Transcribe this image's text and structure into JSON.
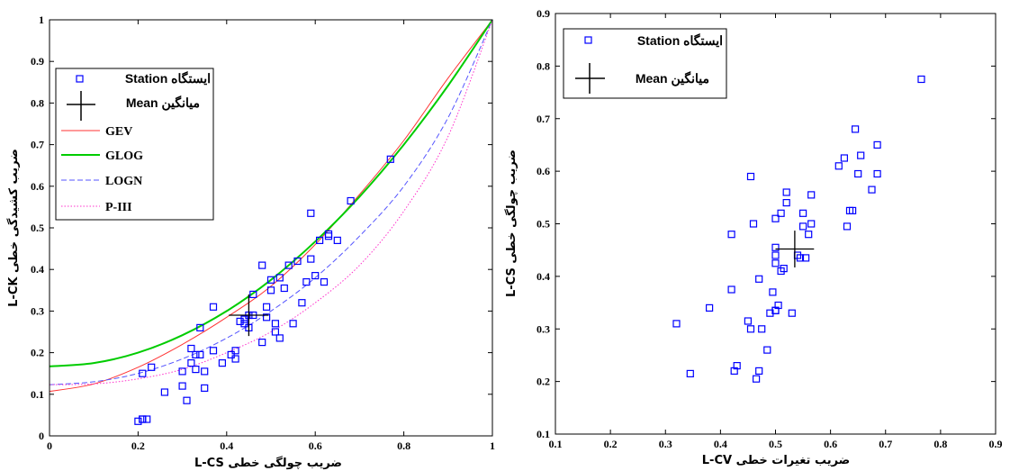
{
  "chart_data": [
    {
      "type": "scatter",
      "xlabel": "ضریب چولگی خطی L-CS",
      "ylabel": "ضریب کشیدگی خطی L-CK",
      "xlim": [
        0,
        1
      ],
      "ylim": [
        0,
        1
      ],
      "x_ticks": [
        0,
        0.2,
        0.4,
        0.6,
        0.8,
        1
      ],
      "x_tick_labels": [
        "0",
        "0.2",
        "0.4",
        "0.6",
        "0.8",
        "1"
      ],
      "y_ticks": [
        0,
        0.1,
        0.2,
        0.3,
        0.4,
        0.5,
        0.6,
        0.7,
        0.8,
        0.9,
        1
      ],
      "y_tick_labels": [
        "0",
        "0.1",
        "0.2",
        "0.3",
        "0.4",
        "0.5",
        "0.6",
        "0.7",
        "0.8",
        "0.9",
        "1"
      ],
      "grid": false,
      "legend_position": "top-left",
      "legend": [
        {
          "label": "Station ایستگاه",
          "marker": "square"
        },
        {
          "label": "Mean  میانگین",
          "marker": "cross"
        },
        {
          "label": "GEV",
          "line": "solid-red"
        },
        {
          "label": "GLOG",
          "line": "solid-green"
        },
        {
          "label": "LOGN",
          "line": "dashed-blue"
        },
        {
          "label": "P-III",
          "line": "dotted-magenta"
        }
      ],
      "series": [
        {
          "name": "Station ایستگاه",
          "kind": "points",
          "color": "#0000ff",
          "x": [
            0.2,
            0.21,
            0.21,
            0.21,
            0.22,
            0.23,
            0.26,
            0.3,
            0.3,
            0.31,
            0.32,
            0.32,
            0.33,
            0.33,
            0.34,
            0.34,
            0.35,
            0.35,
            0.37,
            0.37,
            0.39,
            0.41,
            0.42,
            0.42,
            0.43,
            0.44,
            0.44,
            0.45,
            0.45,
            0.46,
            0.46,
            0.48,
            0.48,
            0.49,
            0.49,
            0.5,
            0.5,
            0.51,
            0.51,
            0.52,
            0.52,
            0.53,
            0.54,
            0.55,
            0.56,
            0.57,
            0.58,
            0.59,
            0.59,
            0.6,
            0.61,
            0.62,
            0.63,
            0.63,
            0.65,
            0.68,
            0.77
          ],
          "y": [
            0.035,
            0.04,
            0.04,
            0.15,
            0.04,
            0.165,
            0.105,
            0.12,
            0.155,
            0.085,
            0.175,
            0.21,
            0.16,
            0.195,
            0.26,
            0.195,
            0.115,
            0.155,
            0.31,
            0.205,
            0.175,
            0.195,
            0.185,
            0.205,
            0.275,
            0.27,
            0.28,
            0.26,
            0.29,
            0.34,
            0.29,
            0.41,
            0.225,
            0.285,
            0.31,
            0.35,
            0.375,
            0.27,
            0.25,
            0.38,
            0.235,
            0.355,
            0.41,
            0.27,
            0.42,
            0.32,
            0.37,
            0.535,
            0.425,
            0.385,
            0.47,
            0.37,
            0.485,
            0.48,
            0.47,
            0.565,
            0.665
          ]
        },
        {
          "name": "Mean  میانگین",
          "kind": "cross",
          "color": "#000000",
          "x": [
            0.45
          ],
          "y": [
            0.29
          ],
          "x_err": 0.045,
          "y_err": 0.05
        },
        {
          "name": "GEV",
          "kind": "line",
          "color": "#ff3333",
          "style": "solid",
          "x": [
            0,
            0.1,
            0.2,
            0.3,
            0.4,
            0.5,
            0.6,
            0.7,
            0.8,
            0.9,
            1
          ],
          "y": [
            0.107,
            0.125,
            0.165,
            0.22,
            0.285,
            0.36,
            0.46,
            0.58,
            0.71,
            0.86,
            1
          ]
        },
        {
          "name": "GLOG",
          "kind": "line",
          "color": "#00cc00",
          "style": "solid",
          "x": [
            0,
            0.1,
            0.2,
            0.3,
            0.4,
            0.5,
            0.6,
            0.7,
            0.8,
            0.9,
            1
          ],
          "y": [
            0.167,
            0.175,
            0.2,
            0.242,
            0.3,
            0.375,
            0.467,
            0.575,
            0.7,
            0.842,
            1
          ]
        },
        {
          "name": "LOGN",
          "kind": "line",
          "color": "#5555ff",
          "style": "dashed",
          "x": [
            0,
            0.1,
            0.2,
            0.3,
            0.4,
            0.5,
            0.6,
            0.7,
            0.8,
            0.9,
            1
          ],
          "y": [
            0.123,
            0.13,
            0.15,
            0.185,
            0.235,
            0.3,
            0.38,
            0.48,
            0.6,
            0.765,
            1
          ]
        },
        {
          "name": "P-III",
          "kind": "line",
          "color": "#ff33cc",
          "style": "dotted",
          "x": [
            0,
            0.1,
            0.2,
            0.3,
            0.4,
            0.5,
            0.6,
            0.7,
            0.8,
            0.9,
            1
          ],
          "y": [
            0.123,
            0.125,
            0.137,
            0.16,
            0.2,
            0.25,
            0.32,
            0.41,
            0.54,
            0.72,
            1
          ]
        }
      ]
    },
    {
      "type": "scatter",
      "xlabel": "ضریب تغیرات خطی L-CV",
      "ylabel": "ضریب چولگی خطی L-CS",
      "xlim": [
        0.1,
        0.9
      ],
      "ylim": [
        0.1,
        0.9
      ],
      "x_ticks": [
        0.1,
        0.2,
        0.3,
        0.4,
        0.5,
        0.6,
        0.7,
        0.8,
        0.9
      ],
      "x_tick_labels": [
        "0.1",
        "0.2",
        "0.3",
        "0.4",
        "0.5",
        "0.6",
        "0.7",
        "0.8",
        "0.9"
      ],
      "y_ticks": [
        0.1,
        0.2,
        0.3,
        0.4,
        0.5,
        0.6,
        0.7,
        0.8,
        0.9
      ],
      "y_tick_labels": [
        "0.1",
        "0.2",
        "0.3",
        "0.4",
        "0.5",
        "0.6",
        "0.7",
        "0.8",
        "0.9"
      ],
      "grid": false,
      "legend_position": "top-left",
      "legend": [
        {
          "label": "Station ایستگاه",
          "marker": "square"
        },
        {
          "label": "Mean  میانگین",
          "marker": "cross"
        }
      ],
      "series": [
        {
          "name": "Station ایستگاه",
          "kind": "points",
          "color": "#0000ff",
          "x": [
            0.32,
            0.345,
            0.38,
            0.42,
            0.42,
            0.425,
            0.43,
            0.45,
            0.455,
            0.455,
            0.46,
            0.465,
            0.47,
            0.47,
            0.475,
            0.485,
            0.49,
            0.495,
            0.5,
            0.5,
            0.5,
            0.5,
            0.5,
            0.5,
            0.505,
            0.51,
            0.51,
            0.515,
            0.52,
            0.52,
            0.53,
            0.54,
            0.545,
            0.55,
            0.55,
            0.555,
            0.56,
            0.565,
            0.565,
            0.615,
            0.625,
            0.63,
            0.635,
            0.64,
            0.645,
            0.65,
            0.655,
            0.675,
            0.685,
            0.685,
            0.765
          ],
          "y": [
            0.31,
            0.215,
            0.34,
            0.48,
            0.375,
            0.22,
            0.23,
            0.315,
            0.59,
            0.3,
            0.5,
            0.205,
            0.22,
            0.395,
            0.3,
            0.26,
            0.33,
            0.37,
            0.51,
            0.335,
            0.455,
            0.425,
            0.44,
            0.335,
            0.345,
            0.41,
            0.52,
            0.415,
            0.56,
            0.54,
            0.33,
            0.44,
            0.435,
            0.495,
            0.52,
            0.435,
            0.48,
            0.555,
            0.5,
            0.61,
            0.625,
            0.495,
            0.525,
            0.525,
            0.68,
            0.595,
            0.63,
            0.565,
            0.65,
            0.595,
            0.775
          ]
        },
        {
          "name": "Mean  میانگین",
          "kind": "cross",
          "color": "#000000",
          "x": [
            0.535
          ],
          "y": [
            0.452
          ],
          "x_err": 0.035,
          "y_err": 0.035
        }
      ]
    }
  ]
}
